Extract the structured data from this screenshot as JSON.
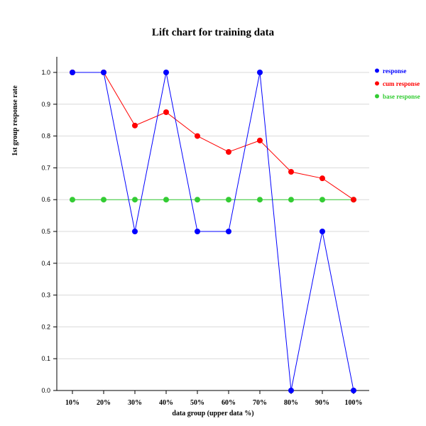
{
  "chart_data": {
    "type": "line",
    "title": "Lift chart for training data",
    "xlabel": "data group (upper data %)",
    "ylabel": "1st group response rate",
    "categories": [
      "10%",
      "20%",
      "30%",
      "40%",
      "50%",
      "60%",
      "70%",
      "80%",
      "90%",
      "100%"
    ],
    "ylim": [
      0,
      1.0
    ],
    "yticks": [
      "0.0",
      "0.1",
      "0.2",
      "0.3",
      "0.4",
      "0.5",
      "0.6",
      "0.7",
      "0.8",
      "0.9",
      "1.0"
    ],
    "grid": true,
    "legend_position": "right",
    "series": [
      {
        "name": "response",
        "color": "#0000ff",
        "values": [
          1.0,
          1.0,
          0.5,
          1.0,
          0.5,
          0.5,
          1.0,
          0.0,
          0.5,
          0.0
        ]
      },
      {
        "name": "cum response",
        "color": "#ff0000",
        "values": [
          1.0,
          1.0,
          0.833,
          0.875,
          0.8,
          0.75,
          0.786,
          0.6875,
          0.667,
          0.6
        ]
      },
      {
        "name": "base response",
        "color": "#33cc33",
        "values": [
          0.6,
          0.6,
          0.6,
          0.6,
          0.6,
          0.6,
          0.6,
          0.6,
          0.6,
          0.6
        ]
      }
    ]
  }
}
